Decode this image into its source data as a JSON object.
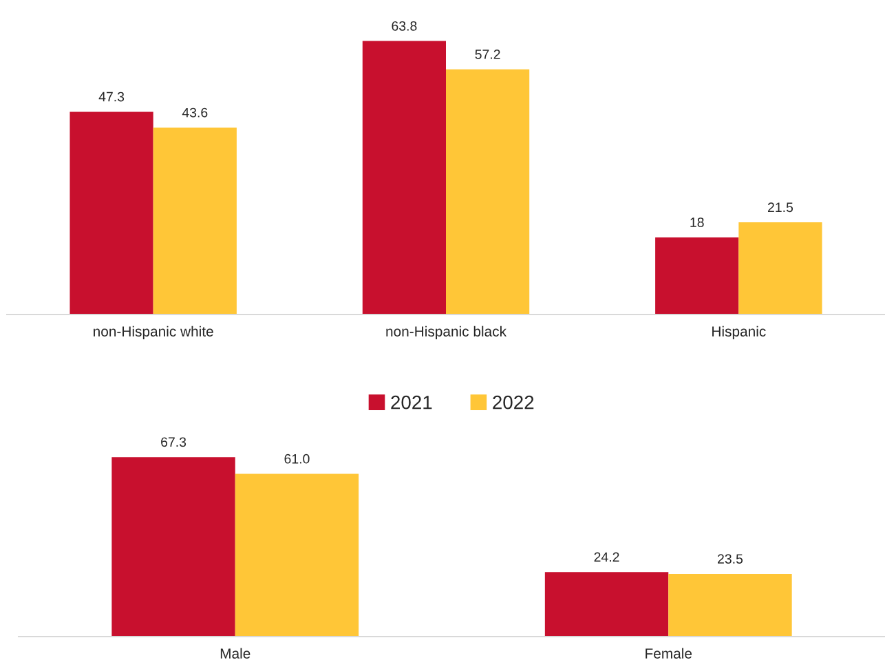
{
  "chart_data": [
    {
      "type": "bar",
      "categories": [
        "non-Hispanic white",
        "non-Hispanic black",
        "Hispanic"
      ],
      "tick_labels": "x",
      "grid": false,
      "legend": false,
      "series": [
        {
          "color": "#c8102e",
          "values": [
            47.3,
            63.8,
            18
          ],
          "value_labels": [
            "47.3",
            "63.8",
            "18"
          ]
        },
        {
          "color": "#ffc637",
          "values": [
            43.6,
            57.2,
            21.5
          ],
          "value_labels": [
            "43.6",
            "57.2",
            "21.5"
          ]
        }
      ]
    },
    {
      "type": "bar",
      "categories": [
        "Male",
        "Female"
      ],
      "tick_labels": "x",
      "grid": false,
      "legend": "top",
      "series": [
        {
          "name": "2021",
          "color": "#c8102e",
          "values": [
            67.3,
            24.2
          ],
          "value_labels": [
            "67.3",
            "24.2"
          ]
        },
        {
          "name": "2022",
          "color": "#ffc637",
          "values": [
            61.0,
            23.5
          ],
          "value_labels": [
            "61.0",
            "23.5"
          ]
        }
      ]
    }
  ]
}
